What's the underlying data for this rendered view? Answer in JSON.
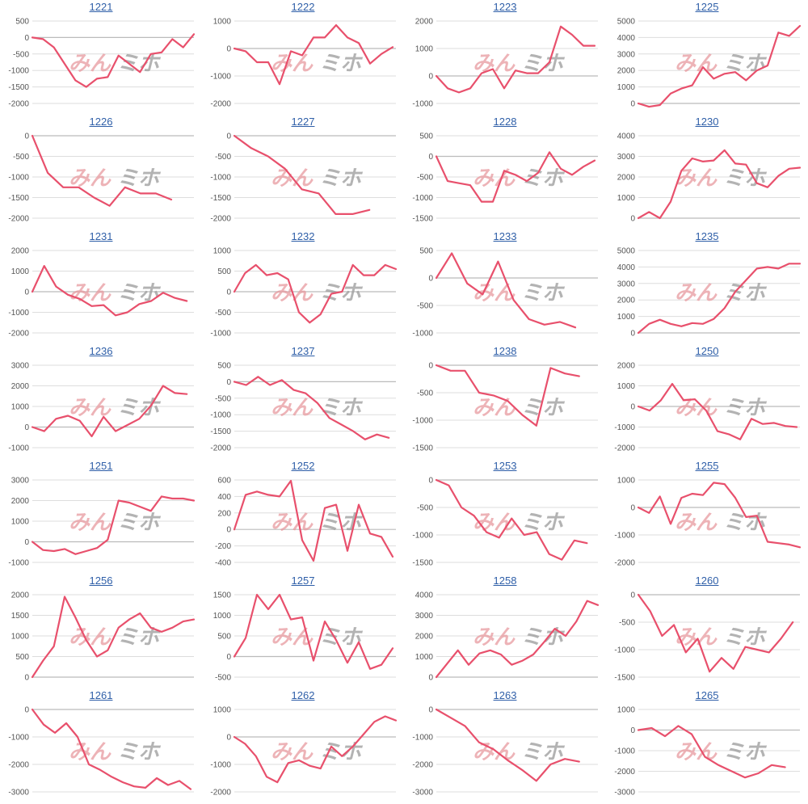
{
  "colors": {
    "line": "#e8506c",
    "grid": "#dddddd",
    "axis": "#bbbbbb",
    "tick": "#555555",
    "title": "#2f5fa8"
  },
  "watermark": {
    "left": "みん",
    "right": "ミホ"
  },
  "chart_data": [
    {
      "type": "line",
      "title": "1221",
      "ylim": [
        -2000,
        500
      ],
      "yticks": [
        -2000,
        -1500,
        -1000,
        -500,
        0,
        500
      ],
      "values": [
        0,
        -50,
        -300,
        -800,
        -1300,
        -1500,
        -1250,
        -1200,
        -550,
        -800,
        -1050,
        -500,
        -450,
        -50,
        -300,
        100
      ]
    },
    {
      "type": "line",
      "title": "1222",
      "ylim": [
        -2000,
        1000
      ],
      "yticks": [
        -2000,
        -1000,
        0,
        1000
      ],
      "values": [
        0,
        -100,
        -500,
        -500,
        -1300,
        -100,
        -250,
        400,
        400,
        850,
        400,
        200,
        -550,
        -200,
        50
      ]
    },
    {
      "type": "line",
      "title": "1223",
      "ylim": [
        -1000,
        2000
      ],
      "yticks": [
        -1000,
        0,
        1000,
        2000
      ],
      "values": [
        0,
        -450,
        -600,
        -450,
        100,
        250,
        -450,
        200,
        100,
        100,
        500,
        1800,
        1500,
        1100,
        1100
      ]
    },
    {
      "type": "line",
      "title": "1225",
      "ylim": [
        0,
        5000
      ],
      "yticks": [
        0,
        1000,
        2000,
        3000,
        4000,
        5000
      ],
      "values": [
        0,
        -200,
        -100,
        600,
        900,
        1100,
        2200,
        1500,
        1800,
        1900,
        1400,
        2000,
        2300,
        4300,
        4100,
        4700
      ]
    },
    {
      "type": "line",
      "title": "1226",
      "ylim": [
        -2000,
        0
      ],
      "yticks": [
        -2000,
        -1500,
        -1000,
        -500,
        0
      ],
      "values": [
        0,
        -900,
        -1250,
        -1250,
        -1500,
        -1700,
        -1250,
        -1400,
        -1400,
        -1550
      ]
    },
    {
      "type": "line",
      "title": "1227",
      "ylim": [
        -2000,
        0
      ],
      "yticks": [
        -2000,
        -1500,
        -1000,
        -500,
        0
      ],
      "values": [
        0,
        -300,
        -500,
        -800,
        -1300,
        -1400,
        -1900,
        -1900,
        -1800
      ]
    },
    {
      "type": "line",
      "title": "1228",
      "ylim": [
        -1500,
        500
      ],
      "yticks": [
        -1500,
        -1000,
        -500,
        0,
        500
      ],
      "values": [
        0,
        -600,
        -650,
        -700,
        -1100,
        -1100,
        -350,
        -450,
        -600,
        -400,
        100,
        -300,
        -450,
        -250,
        -100
      ]
    },
    {
      "type": "line",
      "title": "1230",
      "ylim": [
        0,
        4000
      ],
      "yticks": [
        0,
        1000,
        2000,
        3000,
        4000
      ],
      "values": [
        0,
        300,
        0,
        800,
        2300,
        2900,
        2750,
        2800,
        3300,
        2650,
        2600,
        1700,
        1500,
        2050,
        2400,
        2450
      ]
    },
    {
      "type": "line",
      "title": "1231",
      "ylim": [
        -2000,
        2000
      ],
      "yticks": [
        -2000,
        -1000,
        0,
        1000,
        2000
      ],
      "values": [
        0,
        1250,
        250,
        -150,
        -350,
        -700,
        -650,
        -1150,
        -1000,
        -600,
        -450,
        -50,
        -300,
        -450
      ]
    },
    {
      "type": "line",
      "title": "1232",
      "ylim": [
        -1000,
        1000
      ],
      "yticks": [
        -1000,
        -500,
        0,
        500,
        1000
      ],
      "values": [
        0,
        450,
        650,
        400,
        450,
        300,
        -500,
        -750,
        -550,
        -50,
        0,
        650,
        400,
        400,
        650,
        550
      ]
    },
    {
      "type": "line",
      "title": "1233",
      "ylim": [
        -1000,
        500
      ],
      "yticks": [
        -1000,
        -500,
        0,
        500
      ],
      "values": [
        0,
        450,
        -100,
        -300,
        300,
        -400,
        -750,
        -850,
        -800,
        -900
      ]
    },
    {
      "type": "line",
      "title": "1235",
      "ylim": [
        0,
        5000
      ],
      "yticks": [
        0,
        1000,
        2000,
        3000,
        4000,
        5000
      ],
      "values": [
        0,
        550,
        800,
        550,
        400,
        600,
        550,
        850,
        1500,
        2500,
        3200,
        3900,
        4000,
        3900,
        4200,
        4200
      ]
    },
    {
      "type": "line",
      "title": "1236",
      "ylim": [
        -1000,
        3000
      ],
      "yticks": [
        -1000,
        0,
        1000,
        2000,
        3000
      ],
      "values": [
        0,
        -200,
        400,
        550,
        300,
        -450,
        500,
        -200,
        100,
        400,
        1050,
        2000,
        1650,
        1600
      ]
    },
    {
      "type": "line",
      "title": "1237",
      "ylim": [
        -2000,
        500
      ],
      "yticks": [
        -2000,
        -1500,
        -1000,
        -500,
        0,
        500
      ],
      "values": [
        0,
        -100,
        150,
        -100,
        50,
        -250,
        -350,
        -650,
        -1100,
        -1300,
        -1500,
        -1750,
        -1600,
        -1700
      ]
    },
    {
      "type": "line",
      "title": "1238",
      "ylim": [
        -1500,
        0
      ],
      "yticks": [
        -1500,
        -1000,
        -500,
        0
      ],
      "values": [
        0,
        -100,
        -100,
        -500,
        -550,
        -650,
        -900,
        -1100,
        -50,
        -150,
        -200
      ]
    },
    {
      "type": "line",
      "title": "1250",
      "ylim": [
        -2000,
        2000
      ],
      "yticks": [
        -2000,
        -1000,
        0,
        1000,
        2000
      ],
      "values": [
        0,
        -200,
        300,
        1100,
        300,
        350,
        -200,
        -1200,
        -1350,
        -1600,
        -600,
        -850,
        -800,
        -950,
        -1000
      ]
    },
    {
      "type": "line",
      "title": "1251",
      "ylim": [
        -1000,
        3000
      ],
      "yticks": [
        -1000,
        0,
        1000,
        2000,
        3000
      ],
      "values": [
        0,
        -400,
        -450,
        -350,
        -600,
        -450,
        -300,
        100,
        2000,
        1900,
        1700,
        1500,
        2200,
        2100,
        2100,
        2000
      ]
    },
    {
      "type": "line",
      "title": "1252",
      "ylim": [
        -400,
        600
      ],
      "yticks": [
        -400,
        -200,
        0,
        200,
        400,
        600
      ],
      "values": [
        0,
        420,
        460,
        420,
        400,
        590,
        -130,
        -380,
        260,
        300,
        -260,
        300,
        -50,
        -90,
        -330
      ]
    },
    {
      "type": "line",
      "title": "1253",
      "ylim": [
        -1500,
        0
      ],
      "yticks": [
        -1500,
        -1000,
        -500,
        0
      ],
      "values": [
        0,
        -100,
        -500,
        -650,
        -950,
        -1050,
        -700,
        -1000,
        -950,
        -1350,
        -1450,
        -1100,
        -1150
      ]
    },
    {
      "type": "line",
      "title": "1255",
      "ylim": [
        -2000,
        1000
      ],
      "yticks": [
        -2000,
        -1000,
        0,
        1000
      ],
      "values": [
        0,
        -200,
        400,
        -600,
        350,
        500,
        450,
        900,
        850,
        350,
        -350,
        -300,
        -1250,
        -1300,
        -1350,
        -1450
      ]
    },
    {
      "type": "line",
      "title": "1256",
      "ylim": [
        0,
        2000
      ],
      "yticks": [
        0,
        500,
        1000,
        1500,
        2000
      ],
      "values": [
        0,
        400,
        750,
        1950,
        1450,
        900,
        500,
        650,
        1200,
        1400,
        1550,
        1200,
        1100,
        1200,
        1350,
        1400
      ]
    },
    {
      "type": "line",
      "title": "1257",
      "ylim": [
        -500,
        1500
      ],
      "yticks": [
        -500,
        0,
        500,
        1000,
        1500
      ],
      "values": [
        0,
        450,
        1500,
        1150,
        1500,
        900,
        950,
        -100,
        850,
        400,
        -150,
        350,
        -300,
        -200,
        200
      ]
    },
    {
      "type": "line",
      "title": "1258",
      "ylim": [
        0,
        4000
      ],
      "yticks": [
        0,
        1000,
        2000,
        3000,
        4000
      ],
      "values": [
        0,
        650,
        1300,
        600,
        1150,
        1300,
        1100,
        600,
        800,
        1100,
        1700,
        2350,
        2000,
        2700,
        3700,
        3500
      ]
    },
    {
      "type": "line",
      "title": "1260",
      "ylim": [
        -1500,
        0
      ],
      "yticks": [
        -1500,
        -1000,
        -500,
        0
      ],
      "values": [
        0,
        -300,
        -750,
        -550,
        -1050,
        -800,
        -1400,
        -1150,
        -1350,
        -950,
        -1000,
        -1050,
        -800,
        -500
      ]
    },
    {
      "type": "line",
      "title": "1261",
      "ylim": [
        -3000,
        0
      ],
      "yticks": [
        -3000,
        -2000,
        -1000,
        0
      ],
      "values": [
        0,
        -550,
        -850,
        -500,
        -1000,
        -2000,
        -2200,
        -2450,
        -2650,
        -2800,
        -2850,
        -2500,
        -2750,
        -2600,
        -2900
      ]
    },
    {
      "type": "line",
      "title": "1262",
      "ylim": [
        -2000,
        1000
      ],
      "yticks": [
        -2000,
        -1000,
        0,
        1000
      ],
      "values": [
        0,
        -250,
        -700,
        -1450,
        -1650,
        -950,
        -850,
        -1050,
        -1150,
        -350,
        -700,
        -350,
        100,
        550,
        750,
        600
      ]
    },
    {
      "type": "line",
      "title": "1263",
      "ylim": [
        -3000,
        0
      ],
      "yticks": [
        -3000,
        -2000,
        -1000,
        0
      ],
      "values": [
        0,
        -300,
        -600,
        -1200,
        -1450,
        -1850,
        -2200,
        -2600,
        -2000,
        -1800,
        -1900
      ]
    },
    {
      "type": "line",
      "title": "1265",
      "ylim": [
        -3000,
        1000
      ],
      "yticks": [
        -3000,
        -2000,
        -1000,
        0,
        1000
      ],
      "values": [
        0,
        100,
        -300,
        200,
        -200,
        -1300,
        -1700,
        -2000,
        -2300,
        -2100,
        -1700,
        -1800
      ]
    }
  ]
}
